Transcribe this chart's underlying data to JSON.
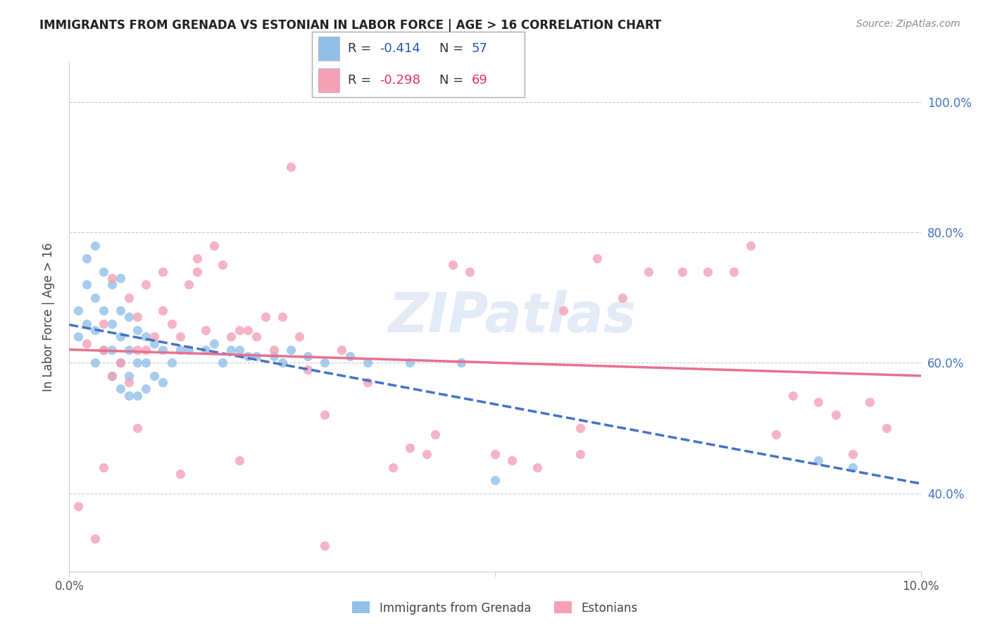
{
  "title": "IMMIGRANTS FROM GRENADA VS ESTONIAN IN LABOR FORCE | AGE > 16 CORRELATION CHART",
  "source": "Source: ZipAtlas.com",
  "ylabel": "In Labor Force | Age > 16",
  "xmin": 0.0,
  "xmax": 0.1,
  "ymin": 0.28,
  "ymax": 1.06,
  "legend_r1": "-0.414",
  "legend_n1": "57",
  "legend_r2": "-0.298",
  "legend_n2": "69",
  "color_blue": "#92C0E8",
  "color_pink": "#F4A0B5",
  "color_blue_line": "#4472C4",
  "color_pink_line": "#E87090",
  "color_r_blue": "#2255BB",
  "color_r_pink": "#DD3366",
  "color_n_blue": "#2255BB",
  "color_n_pink": "#DD3366",
  "watermark": "ZIPatlas",
  "scatter_blue_x": [
    0.001,
    0.001,
    0.002,
    0.002,
    0.002,
    0.003,
    0.003,
    0.003,
    0.003,
    0.004,
    0.004,
    0.004,
    0.005,
    0.005,
    0.005,
    0.005,
    0.006,
    0.006,
    0.006,
    0.006,
    0.006,
    0.007,
    0.007,
    0.007,
    0.007,
    0.008,
    0.008,
    0.008,
    0.009,
    0.009,
    0.009,
    0.01,
    0.01,
    0.011,
    0.011,
    0.012,
    0.013,
    0.014,
    0.016,
    0.017,
    0.018,
    0.019,
    0.02,
    0.021,
    0.022,
    0.024,
    0.025,
    0.026,
    0.028,
    0.03,
    0.033,
    0.035,
    0.04,
    0.046,
    0.05,
    0.088,
    0.092
  ],
  "scatter_blue_y": [
    0.64,
    0.68,
    0.66,
    0.72,
    0.76,
    0.6,
    0.65,
    0.7,
    0.78,
    0.62,
    0.68,
    0.74,
    0.58,
    0.62,
    0.66,
    0.72,
    0.56,
    0.6,
    0.64,
    0.68,
    0.73,
    0.55,
    0.58,
    0.62,
    0.67,
    0.55,
    0.6,
    0.65,
    0.56,
    0.6,
    0.64,
    0.58,
    0.63,
    0.57,
    0.62,
    0.6,
    0.62,
    0.62,
    0.62,
    0.63,
    0.6,
    0.62,
    0.62,
    0.61,
    0.61,
    0.61,
    0.6,
    0.62,
    0.61,
    0.6,
    0.61,
    0.6,
    0.6,
    0.6,
    0.42,
    0.45,
    0.44
  ],
  "scatter_pink_x": [
    0.001,
    0.002,
    0.003,
    0.004,
    0.004,
    0.005,
    0.005,
    0.006,
    0.007,
    0.007,
    0.008,
    0.008,
    0.009,
    0.009,
    0.01,
    0.011,
    0.011,
    0.012,
    0.013,
    0.014,
    0.015,
    0.015,
    0.016,
    0.017,
    0.018,
    0.019,
    0.02,
    0.021,
    0.022,
    0.023,
    0.024,
    0.025,
    0.026,
    0.027,
    0.028,
    0.03,
    0.032,
    0.035,
    0.038,
    0.04,
    0.042,
    0.043,
    0.045,
    0.047,
    0.05,
    0.052,
    0.055,
    0.058,
    0.06,
    0.062,
    0.065,
    0.068,
    0.072,
    0.075,
    0.078,
    0.08,
    0.083,
    0.085,
    0.088,
    0.09,
    0.092,
    0.094,
    0.096,
    0.004,
    0.008,
    0.013,
    0.02,
    0.03,
    0.06
  ],
  "scatter_pink_y": [
    0.38,
    0.63,
    0.33,
    0.62,
    0.66,
    0.58,
    0.73,
    0.6,
    0.57,
    0.7,
    0.62,
    0.67,
    0.62,
    0.72,
    0.64,
    0.68,
    0.74,
    0.66,
    0.64,
    0.72,
    0.74,
    0.76,
    0.65,
    0.78,
    0.75,
    0.64,
    0.65,
    0.65,
    0.64,
    0.67,
    0.62,
    0.67,
    0.9,
    0.64,
    0.59,
    0.52,
    0.62,
    0.57,
    0.44,
    0.47,
    0.46,
    0.49,
    0.75,
    0.74,
    0.46,
    0.45,
    0.44,
    0.68,
    0.46,
    0.76,
    0.7,
    0.74,
    0.74,
    0.74,
    0.74,
    0.78,
    0.49,
    0.55,
    0.54,
    0.52,
    0.46,
    0.54,
    0.5,
    0.44,
    0.5,
    0.43,
    0.45,
    0.32,
    0.5
  ]
}
